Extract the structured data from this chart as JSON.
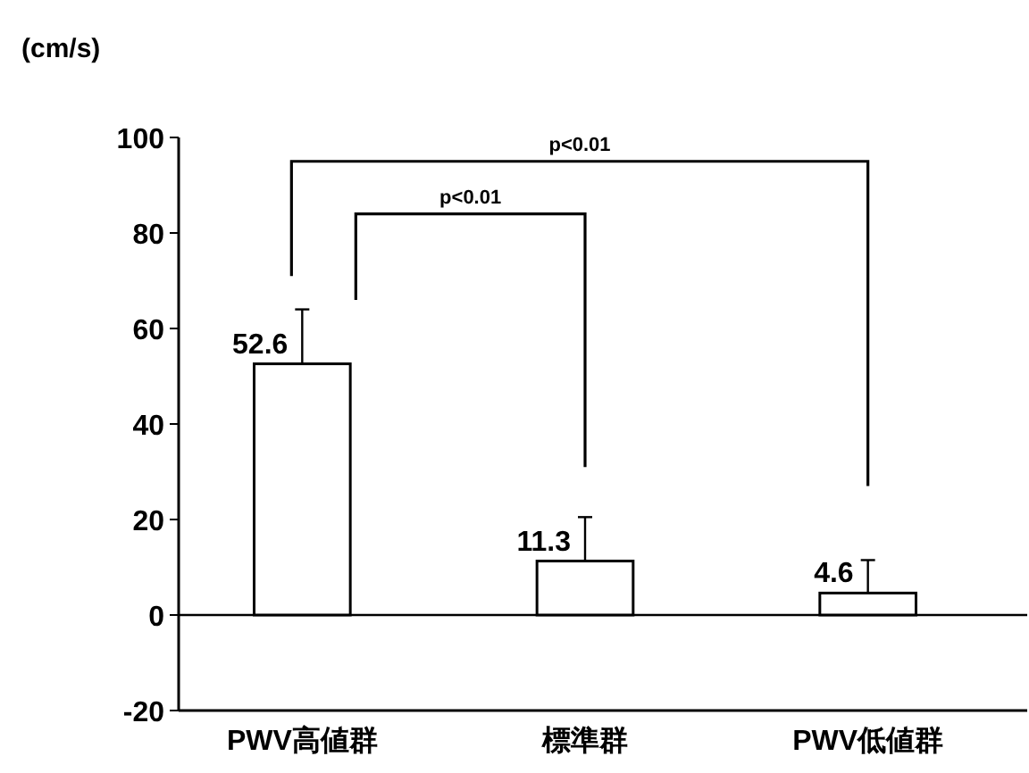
{
  "chart_data": {
    "type": "bar",
    "ylabel": "(cm/s)",
    "categories": [
      "PWV高値群",
      "標準群",
      "PWV低値群"
    ],
    "values": [
      52.6,
      11.3,
      4.6
    ],
    "errors": [
      [
        52.6,
        64
      ],
      [
        11.3,
        20.5
      ],
      [
        4.6,
        11.5
      ]
    ],
    "color": "#ffffff",
    "data_labels": true,
    "ylim": [
      -20,
      100
    ],
    "yticks": [
      -20,
      0,
      20,
      40,
      60,
      80,
      100
    ],
    "annotations": [
      "p<0.01",
      "p<0.01"
    ],
    "ref_lines": [
      {
        "axis": "y",
        "value": 0,
        "color": "#000000"
      }
    ]
  }
}
